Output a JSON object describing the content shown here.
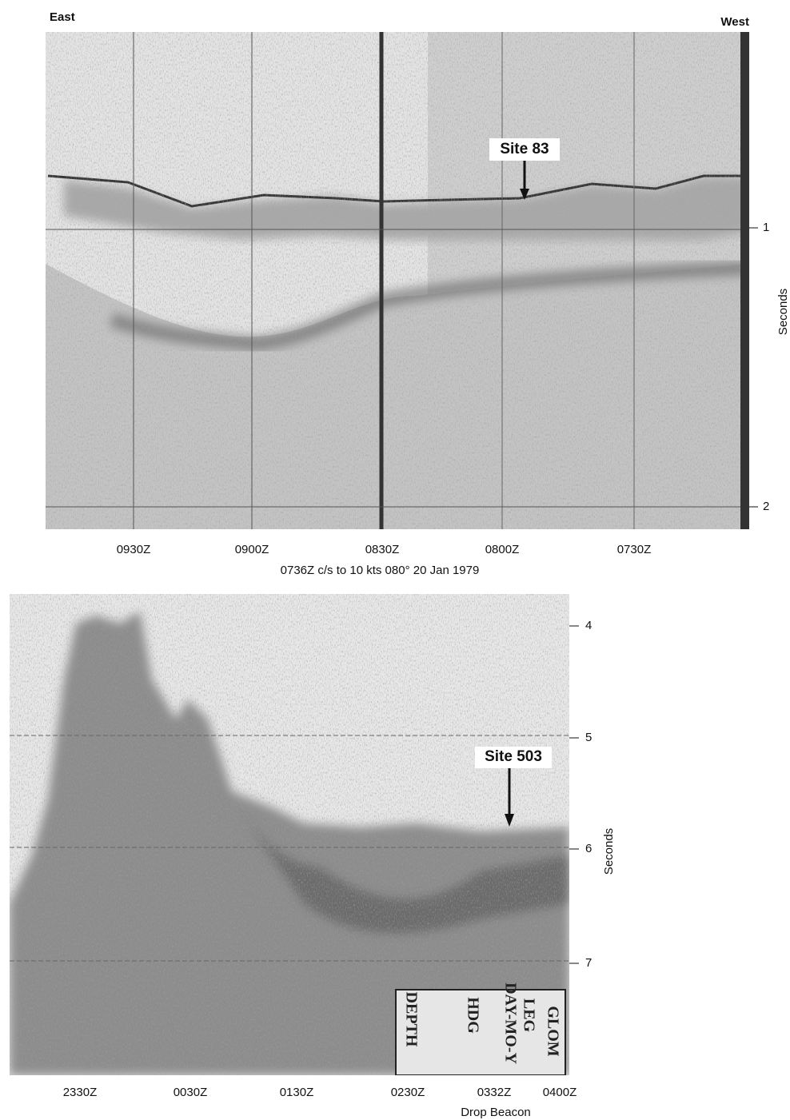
{
  "top_profile": {
    "east": "East",
    "west": "West",
    "site": "Site 83",
    "yticks": [
      "1",
      "2"
    ],
    "y_axis_label": "Seconds",
    "time_labels": [
      "0930Z",
      "0900Z",
      "0830Z",
      "0800Z",
      "0730Z"
    ],
    "caption": "0736Z c/s to 10 kts 080° 20 Jan 1979"
  },
  "bottom_profile": {
    "site": "Site 503",
    "yticks": [
      "4",
      "5",
      "6",
      "7"
    ],
    "y_axis_label": "Seconds",
    "time_labels": [
      "2330Z",
      "0030Z",
      "0130Z",
      "0230Z",
      "0332Z",
      "0400Z"
    ],
    "beacon_label": "Drop Beacon",
    "stamp": [
      "GLOM",
      "LEG",
      "DAY-MO-Y",
      "HDG",
      "DEPTH"
    ]
  }
}
